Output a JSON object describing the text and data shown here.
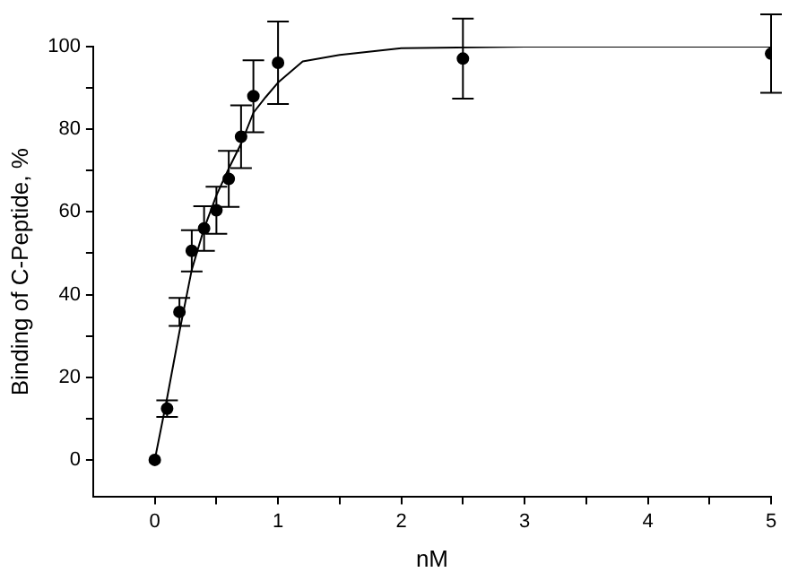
{
  "chart_data": {
    "type": "scatter",
    "xlabel": "nM",
    "ylabel": "Binding of C-Peptide, %",
    "xlim": [
      -0.5,
      5
    ],
    "ylim": [
      -9,
      100
    ],
    "xticks": [
      0,
      {
        "value": 0.5,
        "label": null
      },
      1,
      {
        "value": 1.5,
        "label": null
      },
      2,
      {
        "value": 2.5,
        "label": null
      },
      3,
      {
        "value": 3.5,
        "label": null
      },
      4,
      {
        "value": 4.5,
        "label": null
      },
      5
    ],
    "yticks": [
      0,
      {
        "value": 10,
        "label": null
      },
      20,
      {
        "value": 30,
        "label": null
      },
      40,
      {
        "value": 50,
        "label": null
      },
      60,
      {
        "value": 70,
        "label": null
      },
      80,
      {
        "value": 90,
        "label": null
      },
      100
    ],
    "grid": false,
    "legend": false,
    "marker": "circle",
    "series": [
      {
        "type": "scatter",
        "color": "#000000",
        "x": [
          0,
          0.1,
          0.2,
          0.3,
          0.4,
          0.5,
          0.6,
          0.7,
          0.8,
          1.0,
          2.5,
          5
        ],
        "values": [
          0,
          12.4,
          35.8,
          50.6,
          56,
          60.4,
          68,
          78.2,
          88,
          96.1,
          97.1,
          98.3
        ],
        "errors": [
          null,
          2,
          3.4,
          5,
          5.4,
          5.7,
          6.8,
          7.6,
          8.7,
          10,
          9.7,
          9.5
        ]
      },
      {
        "type": "line",
        "color": "#000000",
        "marker": "none",
        "line_style": "solid",
        "x": [
          0,
          0.1,
          0.2,
          0.3,
          0.4,
          0.5,
          0.6,
          0.7,
          0.8,
          0.9,
          1.0,
          1.2,
          1.5,
          2,
          3,
          5
        ],
        "values": [
          0,
          15,
          31,
          46,
          56,
          64,
          70.5,
          76.5,
          84,
          87.8,
          91.3,
          96.4,
          98,
          99.6,
          100,
          100
        ]
      }
    ]
  }
}
